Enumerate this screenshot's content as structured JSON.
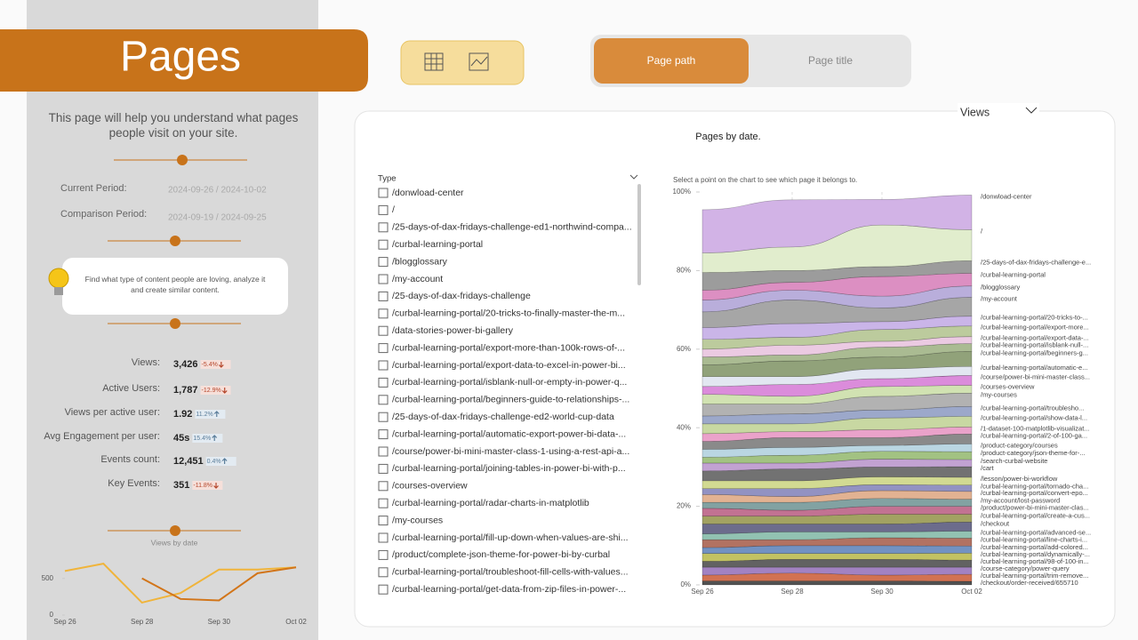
{
  "sidebar": {
    "title": "Pages",
    "description": "This page will help you understand what pages people visit on your site.",
    "current_period": {
      "label": "Current Period:",
      "value": "2024-09-26 / 2024-10-02"
    },
    "comparison_period": {
      "label": "Comparison Period:",
      "value": "2024-09-19 / 2024-09-25"
    },
    "tip": "Find what type of content people are loving, analyze it and create similar content.",
    "kpis": [
      {
        "label": "Views:",
        "value": "3,426",
        "change": "-5.4%"
      },
      {
        "label": "Active Users:",
        "value": "1,787",
        "change": "-12.9%"
      },
      {
        "label": "Views per active user:",
        "value": "1.92",
        "change": "11.2%"
      },
      {
        "label": "Avg Engagement per user:",
        "value": "45s",
        "change": "15.4%"
      },
      {
        "label": "Events count:",
        "value": "12,451",
        "change": "0.4%"
      },
      {
        "label": "Key Events:",
        "value": "351",
        "change": "-11.8%"
      }
    ],
    "views_chart": {
      "type": "line",
      "title": "Views by date",
      "x": [
        "Sep 26",
        null,
        "Sep 28",
        null,
        "Sep 30",
        null,
        "Oct 02"
      ],
      "series": [
        {
          "color": "#f0b43a",
          "values": [
            600,
            700,
            170,
            300,
            620,
            620,
            650
          ]
        },
        {
          "color": "#d27519",
          "values": [
            null,
            null,
            500,
            220,
            200,
            570,
            650
          ]
        }
      ],
      "ylim": [
        0,
        750
      ],
      "yticks": [
        0,
        500
      ]
    }
  },
  "toolbar": {
    "toggle": [
      "Page path",
      "Page title"
    ],
    "measure": "Views"
  },
  "main": {
    "title": "Pages by date.",
    "filter": {
      "label": "Type",
      "items": [
        "/donwload-center",
        "/",
        "/25-days-of-dax-fridays-challenge-ed1-northwind-compa...",
        "/curbal-learning-portal",
        "/blogglossary",
        "/my-account",
        "/25-days-of-dax-fridays-challenge",
        "/curbal-learning-portal/20-tricks-to-finally-master-the-m...",
        "/data-stories-power-bi-gallery",
        "/curbal-learning-portal/export-more-than-100k-rows-of-...",
        "/curbal-learning-portal/export-data-to-excel-in-power-bi...",
        "/curbal-learning-portal/isblank-null-or-empty-in-power-q...",
        "/curbal-learning-portal/beginners-guide-to-relationships-...",
        "/25-days-of-dax-fridays-challenge-ed2-world-cup-data",
        "/curbal-learning-portal/automatic-export-power-bi-data-...",
        "/course/power-bi-mini-master-class-1-using-a-rest-api-a...",
        "/curbal-learning-portal/joining-tables-in-power-bi-with-p...",
        "/courses-overview",
        "/curbal-learning-portal/radar-charts-in-matplotlib",
        "/my-courses",
        "/curbal-learning-portal/fill-up-down-when-values-are-shi...",
        "/product/complete-json-theme-for-power-bi-by-curbal",
        "/curbal-learning-portal/troubleshoot-fill-cells-with-values...",
        "/curbal-learning-portal/get-data-from-zip-files-in-power-..."
      ]
    },
    "chart": {
      "type": "stacked-area",
      "subtitle": "Select a point on the chart to see which page it belongs to.",
      "x": [
        "Sep 26",
        "Sep 28",
        "Sep 30",
        "Oct 02"
      ],
      "ylim": [
        0,
        100
      ],
      "yticks": [
        {
          "value": 0,
          "label": "0%"
        },
        {
          "value": 20,
          "label": "20%"
        },
        {
          "value": 40,
          "label": "40%"
        },
        {
          "value": 60,
          "label": "60%"
        },
        {
          "value": 80,
          "label": "80%"
        },
        {
          "value": 100,
          "label": "100%"
        }
      ],
      "series": [
        {
          "name": "/donwload-center",
          "color": "#d2b3e6",
          "values": [
            11,
            12,
            6.5,
            8.8
          ]
        },
        {
          "name": "/",
          "color": "#e1edcd",
          "values": [
            5,
            6,
            10.6,
            7.9
          ]
        },
        {
          "name": "/25-days-of-dax-fridays-challenge-e...",
          "color": "#9c9c9c",
          "values": [
            4.5,
            3,
            2.5,
            3.2
          ]
        },
        {
          "name": "/curbal-learning-portal",
          "color": "#dc8fc2",
          "values": [
            2.5,
            2,
            5,
            3.2
          ]
        },
        {
          "name": "/blogglossary",
          "color": "#b9aedb",
          "values": [
            3,
            2.5,
            3,
            2.9
          ]
        },
        {
          "name": "/my-account",
          "color": "#a6a6a6",
          "values": [
            4,
            6,
            3.5,
            4.8
          ]
        },
        {
          "name": "/curbal-learning-portal/20-tricks-to-...",
          "color": "#cab5e8",
          "values": [
            3,
            3.5,
            2,
            2.5
          ]
        },
        {
          "name": "/curbal-learning-portal/export-more...",
          "color": "#bccb9d",
          "values": [
            2.5,
            2,
            3,
            2.7
          ]
        },
        {
          "name": "/curbal-learning-portal/export-data-...",
          "color": "#ebcae2",
          "values": [
            2,
            2.5,
            1.5,
            1.8
          ]
        },
        {
          "name": "/curbal-learning-portal/isblank-null-...",
          "color": "#aabb92",
          "values": [
            2,
            1.5,
            2.5,
            2
          ]
        },
        {
          "name": "/curbal-learning-portal/beginners-g...",
          "color": "#91a27a",
          "values": [
            3,
            4,
            3,
            3.8
          ]
        },
        {
          "name": "/curbal-learning-portal/automatic-e...",
          "color": "#e2e7f1",
          "values": [
            2.5,
            2,
            2.5,
            2.3
          ]
        },
        {
          "name": "/course/power-bi-mini-master-class...",
          "color": "#db8cdb",
          "values": [
            2,
            3,
            2,
            2.5
          ]
        },
        {
          "name": "/courses-overview",
          "color": "#d1e2b2",
          "values": [
            2.5,
            2,
            2.5,
            2
          ]
        },
        {
          "name": "/my-courses",
          "color": "#b2b2b2",
          "values": [
            3,
            2.5,
            3.5,
            3.4
          ]
        },
        {
          "name": "/curbal-learning-portal/troublesho...",
          "color": "#9ca8ca",
          "values": [
            2,
            2.5,
            2,
            2.5
          ]
        },
        {
          "name": "/curbal-learning-portal/show-data-l...",
          "color": "#c8d8a2",
          "values": [
            2.5,
            2,
            3,
            2.7
          ]
        },
        {
          "name": "/1-dataset-100-matplotlib-visualizat...",
          "color": "#eaa2ca",
          "values": [
            2,
            1.5,
            2,
            1.8
          ]
        },
        {
          "name": "/curbal-learning-portal/2-of-100-ga...",
          "color": "#8a8a8a",
          "values": [
            2,
            2.5,
            2,
            2.5
          ]
        },
        {
          "name": "/product-category/courses",
          "color": "#bad6e2",
          "values": [
            2,
            2,
            1.5,
            2
          ]
        },
        {
          "name": "/product-category/json-theme-for-...",
          "color": "#a2c282",
          "values": [
            1.5,
            2,
            2,
            2
          ]
        },
        {
          "name": "/search-curbal-website",
          "color": "#c2a2d2",
          "values": [
            2,
            1.5,
            2,
            1.8
          ]
        },
        {
          "name": "/cart",
          "color": "#727272",
          "values": [
            2.5,
            3,
            2.5,
            2.7
          ]
        },
        {
          "name": "/lesson/power-bi-workflow",
          "color": "#d2da92",
          "values": [
            2,
            2,
            2,
            2
          ]
        },
        {
          "name": "/curbal-learning-portal/tornado-cha...",
          "color": "#9292c2",
          "values": [
            1.5,
            2,
            1.5,
            1.6
          ]
        },
        {
          "name": "/curbal-learning-portal/convert-epo...",
          "color": "#e2b292",
          "values": [
            2,
            1.5,
            2,
            2
          ]
        },
        {
          "name": "/my-account/lost-password",
          "color": "#82a2a2",
          "values": [
            1.5,
            2,
            2,
            1.8
          ]
        },
        {
          "name": "/product/power-bi-mini-master-clas...",
          "color": "#c27292",
          "values": [
            2,
            1.5,
            2,
            2
          ]
        },
        {
          "name": "/curbal-learning-portal/create-a-cus...",
          "color": "#a2a262",
          "values": [
            2,
            2,
            2.5,
            2
          ]
        },
        {
          "name": "/checkout",
          "color": "#6c6c8c",
          "values": [
            2.5,
            2,
            2,
            2.3
          ]
        },
        {
          "name": "/curbal-learning-portal/advanced-se...",
          "color": "#92c2b2",
          "values": [
            1.5,
            2,
            1.5,
            1.8
          ]
        },
        {
          "name": "/curbal-learning-portal/line-charts-i...",
          "color": "#b27262",
          "values": [
            2,
            1.5,
            2,
            2
          ]
        },
        {
          "name": "/curbal-learning-portal/add-colored...",
          "color": "#7292c2",
          "values": [
            1.5,
            2,
            2,
            1.8
          ]
        },
        {
          "name": "/curbal-learning-portal/dynamically-...",
          "color": "#c2c262",
          "values": [
            2,
            1.5,
            1.5,
            1.8
          ]
        },
        {
          "name": "/curbal-learning-portal/98-of-100-in...",
          "color": "#626262",
          "values": [
            1.5,
            2,
            2,
            1.8
          ]
        },
        {
          "name": "/course-category/power-query",
          "color": "#a282c2",
          "values": [
            2,
            1.5,
            2,
            1.8
          ]
        },
        {
          "name": "/curbal-learning-portal/trim-remove...",
          "color": "#d27252",
          "values": [
            1.5,
            2,
            1.5,
            1.8
          ]
        },
        {
          "name": "/checkout/order-received/655710",
          "color": "#525252",
          "values": [
            1,
            1,
            1,
            0.9
          ]
        }
      ]
    }
  }
}
